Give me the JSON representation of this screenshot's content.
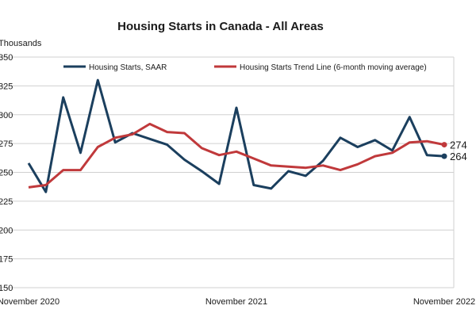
{
  "chart_data": {
    "type": "line",
    "title": "Housing Starts in Canada - All Areas",
    "ylabel": "Thousands",
    "ylim": [
      150,
      350
    ],
    "y_ticks": [
      150,
      175,
      200,
      225,
      250,
      275,
      300,
      325,
      350
    ],
    "grid": "horizontal",
    "legend_position": "top",
    "x": [
      "2020-11",
      "2020-12",
      "2021-01",
      "2021-02",
      "2021-03",
      "2021-04",
      "2021-05",
      "2021-06",
      "2021-07",
      "2021-08",
      "2021-09",
      "2021-10",
      "2021-11",
      "2021-12",
      "2022-01",
      "2022-02",
      "2022-03",
      "2022-04",
      "2022-05",
      "2022-06",
      "2022-07",
      "2022-08",
      "2022-09",
      "2022-10",
      "2022-11"
    ],
    "x_tick_labels": [
      {
        "x": "2020-11",
        "label": "November 2020"
      },
      {
        "x": "2021-11",
        "label": "November 2021"
      },
      {
        "x": "2022-11",
        "label": "November 2022"
      }
    ],
    "series": [
      {
        "name": "Housing Starts, SAAR",
        "color": "#1b3f5e",
        "values": [
          258,
          233,
          315,
          267,
          330,
          276,
          284,
          279,
          274,
          261,
          251,
          240,
          306,
          239,
          236,
          251,
          247,
          260,
          280,
          272,
          278,
          269,
          298,
          265,
          264
        ],
        "end_label": "264"
      },
      {
        "name": "Housing Starts Trend Line (6-month moving average)",
        "color": "#c0393b",
        "values": [
          237,
          239,
          252,
          252,
          272,
          280,
          283,
          292,
          285,
          284,
          271,
          265,
          268,
          262,
          256,
          255,
          254,
          256,
          252,
          257,
          264,
          267,
          276,
          277,
          274
        ],
        "end_label": "274"
      }
    ]
  }
}
